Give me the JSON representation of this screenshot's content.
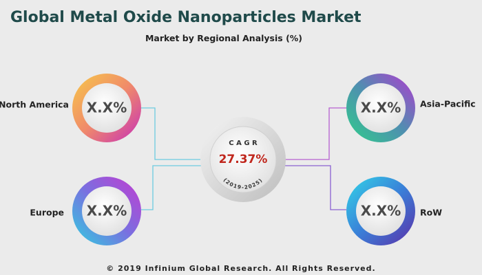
{
  "header": {
    "title": "Global Metal Oxide Nanoparticles Market",
    "subtitle": "Market by Regional Analysis (%)"
  },
  "center": {
    "label": "C A G R",
    "value": "27.37%",
    "period": "(2019-2025)"
  },
  "regions": [
    {
      "name": "North America",
      "value": "X.X%"
    },
    {
      "name": "Europe",
      "value": "X.X%"
    },
    {
      "name": "Asia-Pacific",
      "value": "X.X%"
    },
    {
      "name": "RoW",
      "value": "X.X%"
    }
  ],
  "footer": "© 2019 Infinium Global Research. All Rights Reserved."
}
